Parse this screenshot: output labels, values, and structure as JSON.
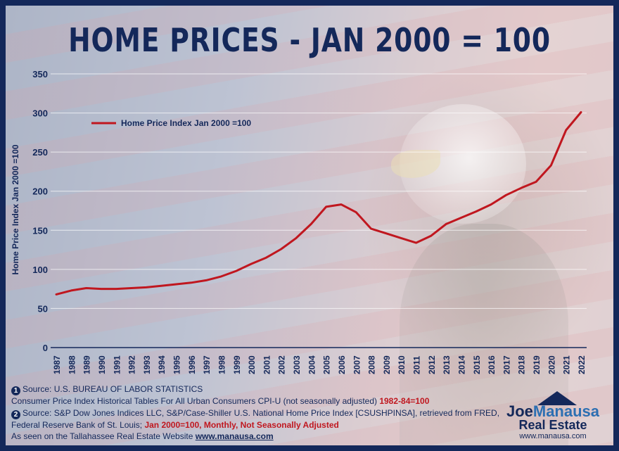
{
  "title": "HOME PRICES - JAN 2000 = 100",
  "chart_data": {
    "type": "line",
    "ylabel": "Home Price Index Jan 2000 =100",
    "ylim": [
      0,
      350
    ],
    "yticks": [
      0,
      50,
      100,
      150,
      200,
      250,
      300,
      350
    ],
    "grid": true,
    "legend_position": "top-left",
    "categories": [
      "1987",
      "1988",
      "1989",
      "1990",
      "1991",
      "1992",
      "1993",
      "1994",
      "1995",
      "1996",
      "1997",
      "1998",
      "1999",
      "2000",
      "2001",
      "2002",
      "2003",
      "2004",
      "2005",
      "2006",
      "2007",
      "2008",
      "2009",
      "2010",
      "2011",
      "2012",
      "2013",
      "2014",
      "2015",
      "2016",
      "2017",
      "2018",
      "2019",
      "2020",
      "2021",
      "2022"
    ],
    "series": [
      {
        "name": "Home Price Index Jan 2000 =100",
        "color": "#c0171f",
        "values": [
          68,
          73,
          76,
          75,
          75,
          76,
          77,
          79,
          81,
          83,
          86,
          91,
          98,
          107,
          115,
          126,
          140,
          158,
          180,
          183,
          173,
          152,
          146,
          140,
          134,
          143,
          158,
          166,
          174,
          183,
          195,
          204,
          212,
          233,
          278,
          301
        ]
      }
    ]
  },
  "notes": {
    "n1_badge": "1",
    "n1_text": "Source: U.S. BUREAU OF LABOR STATISTICS",
    "n1_detail": "Consumer Price Index Historical Tables For All Urban Consumers CPI-U (not seasonally adjusted) ",
    "n1_detail_red": "1982-84=100",
    "n2_badge": "2",
    "n2_text": "Source: S&P Dow Jones Indices LLC, S&P/Case-Shiller U.S. National Home Price Index [CSUSHPINSA], retrieved from FRED,",
    "n2_detail": "Federal Reserve Bank of St. Louis; ",
    "n2_detail_red": "Jan 2000=100, Monthly, Not Seasonally Adjusted",
    "seen_prefix": "As seen on the Tallahassee Real Estate Website ",
    "seen_url": "www.manausa.com"
  },
  "logo": {
    "name_1": "Joe",
    "name_2": "Manausa",
    "sub": "Real Estate",
    "url": "www.manausa.com"
  }
}
